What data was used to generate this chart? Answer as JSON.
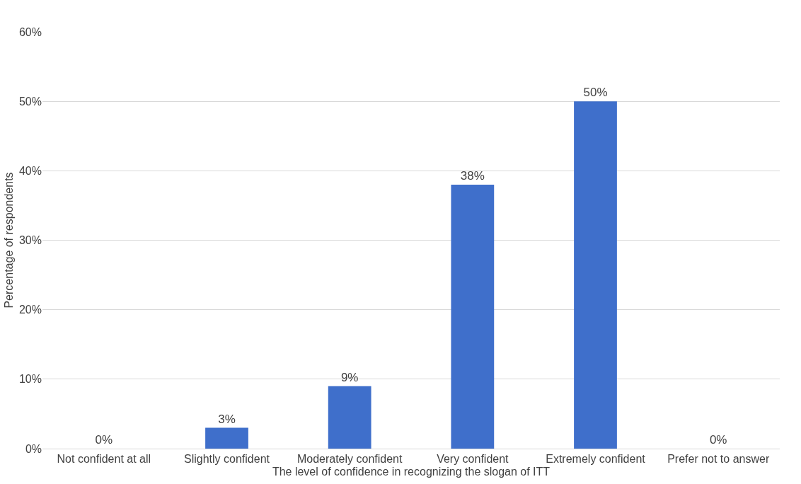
{
  "chart_data": {
    "type": "bar",
    "xlabel": "The level of confidence in recognizing the slogan of ITT",
    "ylabel": "Percentage of respondents",
    "categories": [
      "Not confident at all",
      "Slightly confident",
      "Moderately confident",
      "Very confident",
      "Extremely confident",
      "Prefer not to answer"
    ],
    "values": [
      0,
      3,
      9,
      38,
      50,
      0
    ],
    "value_labels": [
      "0%",
      "3%",
      "9%",
      "38%",
      "50%",
      "0%"
    ],
    "color": "#3f6fcb",
    "ylim": [
      0,
      60
    ],
    "yticks": [
      {
        "value": 0,
        "label": "0%"
      },
      {
        "value": 10,
        "label": "10%"
      },
      {
        "value": 20,
        "label": "20%"
      },
      {
        "value": 30,
        "label": "30%"
      },
      {
        "value": 40,
        "label": "40%"
      },
      {
        "value": 50,
        "label": "50%"
      },
      {
        "value": 60,
        "label": "60%"
      }
    ],
    "grid": "y",
    "legend": false
  }
}
